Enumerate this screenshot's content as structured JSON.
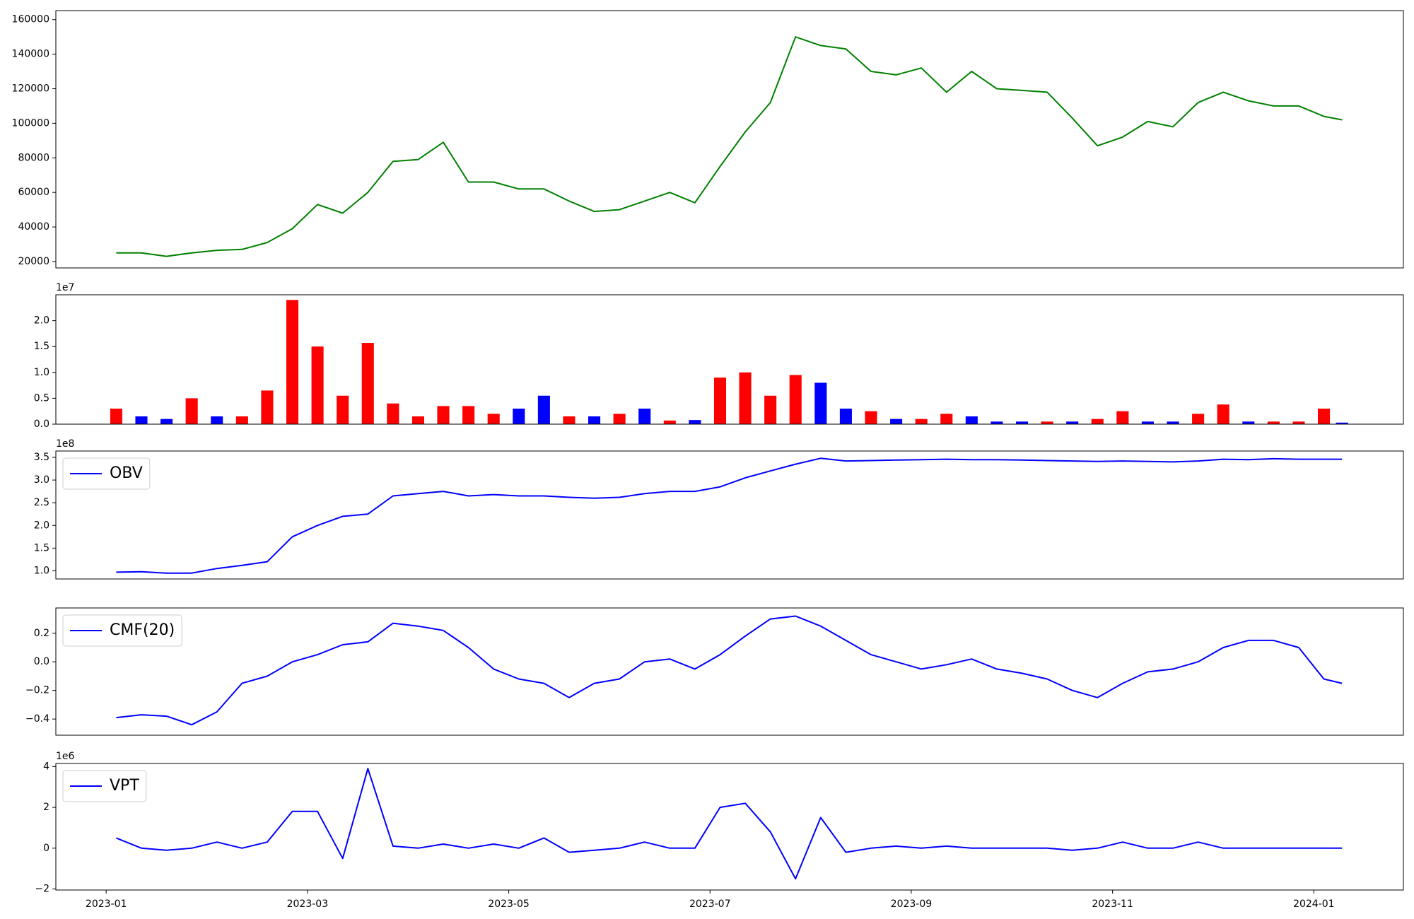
{
  "chart_data": [
    {
      "type": "line",
      "color": "#008000",
      "x": [
        0.1,
        0.35,
        0.6,
        0.85,
        1.1,
        1.35,
        1.6,
        1.85,
        2.1,
        2.35,
        2.6,
        2.85,
        3.1,
        3.35,
        3.6,
        3.85,
        4.1,
        4.35,
        4.6,
        4.85,
        5.1,
        5.35,
        5.6,
        5.85,
        6.1,
        6.35,
        6.6,
        6.85,
        7.1,
        7.35,
        7.6,
        7.85,
        8.1,
        8.35,
        8.6,
        8.85,
        9.1,
        9.35,
        9.6,
        9.85,
        10.1,
        10.35,
        10.6,
        10.85,
        11.1,
        11.35,
        11.6,
        11.85,
        12.1,
        12.28
      ],
      "values": [
        25000,
        25000,
        23000,
        25000,
        26500,
        27000,
        31000,
        39000,
        53000,
        48000,
        60000,
        78000,
        79000,
        89000,
        66000,
        66000,
        62000,
        62000,
        55000,
        49000,
        50000,
        55000,
        60000,
        54000,
        75000,
        95000,
        112000,
        150000,
        145000,
        143000,
        130000,
        128000,
        132000,
        118000,
        130000,
        120000,
        119000,
        118000,
        103000,
        87000,
        92000,
        101000,
        98000,
        112000,
        118000,
        113000,
        110000,
        110000,
        104000,
        102000
      ],
      "xlim": [
        -0.5,
        12.89
      ],
      "ylim": [
        16300,
        165200
      ],
      "yticks": [
        20000,
        40000,
        60000,
        80000,
        100000,
        120000,
        140000,
        160000
      ]
    },
    {
      "type": "bar",
      "y_offset_label": "1e7",
      "x": [
        0.1,
        0.35,
        0.6,
        0.85,
        1.1,
        1.35,
        1.6,
        1.85,
        2.1,
        2.35,
        2.6,
        2.85,
        3.1,
        3.35,
        3.6,
        3.85,
        4.1,
        4.35,
        4.6,
        4.85,
        5.1,
        5.35,
        5.6,
        5.85,
        6.1,
        6.35,
        6.6,
        6.85,
        7.1,
        7.35,
        7.6,
        7.85,
        8.1,
        8.35,
        8.6,
        8.85,
        9.1,
        9.35,
        9.6,
        9.85,
        10.1,
        10.35,
        10.6,
        10.85,
        11.1,
        11.35,
        11.6,
        11.85,
        12.1,
        12.28
      ],
      "values": [
        0.3,
        0.15,
        0.1,
        0.5,
        0.15,
        0.15,
        0.65,
        2.4,
        1.5,
        0.55,
        1.57,
        0.4,
        0.15,
        0.35,
        0.35,
        0.2,
        0.3,
        0.55,
        0.15,
        0.15,
        0.2,
        0.3,
        0.07,
        0.08,
        0.9,
        1.0,
        0.55,
        0.95,
        0.8,
        0.3,
        0.25,
        0.1,
        0.1,
        0.2,
        0.15,
        0.05,
        0.05,
        0.05,
        0.05,
        0.1,
        0.25,
        0.05,
        0.05,
        0.2,
        0.38,
        0.05,
        0.05,
        0.05,
        0.3,
        0.03
      ],
      "bar_colors": [
        "#ff0000",
        "#0000ff",
        "#0000ff",
        "#ff0000",
        "#0000ff",
        "#ff0000",
        "#ff0000",
        "#ff0000",
        "#ff0000",
        "#ff0000",
        "#ff0000",
        "#ff0000",
        "#ff0000",
        "#ff0000",
        "#ff0000",
        "#ff0000",
        "#0000ff",
        "#0000ff",
        "#ff0000",
        "#0000ff",
        "#ff0000",
        "#0000ff",
        "#ff0000",
        "#0000ff",
        "#ff0000",
        "#ff0000",
        "#ff0000",
        "#ff0000",
        "#0000ff",
        "#0000ff",
        "#ff0000",
        "#0000ff",
        "#ff0000",
        "#ff0000",
        "#0000ff",
        "#0000ff",
        "#0000ff",
        "#ff0000",
        "#0000ff",
        "#ff0000",
        "#ff0000",
        "#0000ff",
        "#0000ff",
        "#ff0000",
        "#ff0000",
        "#0000ff",
        "#ff0000",
        "#ff0000",
        "#ff0000",
        "#0000ff"
      ],
      "xlim": [
        -0.5,
        12.89
      ],
      "ylim": [
        0,
        2.5
      ],
      "yticks": [
        {
          "value": 0,
          "label": "0.0"
        },
        {
          "value": 0.5,
          "label": "0.5"
        },
        {
          "value": 1,
          "label": "1.0"
        },
        {
          "value": 1.5,
          "label": "1.5"
        },
        {
          "value": 2,
          "label": "2.0"
        }
      ]
    },
    {
      "type": "line",
      "y_offset_label": "1e8",
      "legend": "upper left",
      "x": [
        0.1,
        0.35,
        0.6,
        0.85,
        1.1,
        1.35,
        1.6,
        1.85,
        2.1,
        2.35,
        2.6,
        2.85,
        3.1,
        3.35,
        3.6,
        3.85,
        4.1,
        4.35,
        4.6,
        4.85,
        5.1,
        5.35,
        5.6,
        5.85,
        6.1,
        6.35,
        6.6,
        6.85,
        7.1,
        7.35,
        7.6,
        7.85,
        8.1,
        8.35,
        8.6,
        8.85,
        9.1,
        9.35,
        9.6,
        9.85,
        10.1,
        10.35,
        10.6,
        10.85,
        11.1,
        11.35,
        11.6,
        11.85,
        12.1,
        12.28
      ],
      "series": [
        {
          "name": "OBV",
          "color": "#0000ff",
          "values": [
            0.97,
            0.98,
            0.95,
            0.95,
            1.05,
            1.12,
            1.2,
            1.75,
            2.0,
            2.2,
            2.25,
            2.65,
            2.7,
            2.75,
            2.65,
            2.68,
            2.65,
            2.65,
            2.62,
            2.6,
            2.62,
            2.7,
            2.75,
            2.75,
            2.85,
            3.05,
            3.2,
            3.35,
            3.48,
            3.42,
            3.43,
            3.44,
            3.45,
            3.46,
            3.45,
            3.45,
            3.44,
            3.43,
            3.42,
            3.41,
            3.42,
            3.41,
            3.4,
            3.42,
            3.46,
            3.45,
            3.47,
            3.46,
            3.46,
            3.46
          ]
        }
      ],
      "xlim": [
        -0.5,
        12.89
      ],
      "ylim": [
        0.82,
        3.64
      ],
      "yticks": [
        {
          "value": 1,
          "label": "1.0"
        },
        {
          "value": 1.5,
          "label": "1.5"
        },
        {
          "value": 2,
          "label": "2.0"
        },
        {
          "value": 2.5,
          "label": "2.5"
        },
        {
          "value": 3,
          "label": "3.0"
        },
        {
          "value": 3.5,
          "label": "3.5"
        }
      ]
    },
    {
      "type": "line",
      "legend": "upper left",
      "x": [
        0.1,
        0.35,
        0.6,
        0.85,
        1.1,
        1.35,
        1.6,
        1.85,
        2.1,
        2.35,
        2.6,
        2.85,
        3.1,
        3.35,
        3.6,
        3.85,
        4.1,
        4.35,
        4.6,
        4.85,
        5.1,
        5.35,
        5.6,
        5.85,
        6.1,
        6.35,
        6.6,
        6.85,
        7.1,
        7.35,
        7.6,
        7.85,
        8.1,
        8.35,
        8.6,
        8.85,
        9.1,
        9.35,
        9.6,
        9.85,
        10.1,
        10.35,
        10.6,
        10.85,
        11.1,
        11.35,
        11.6,
        11.85,
        12.1,
        12.28
      ],
      "series": [
        {
          "name": "CMF(20)",
          "color": "#0000ff",
          "values": [
            -0.39,
            -0.37,
            -0.38,
            -0.44,
            -0.35,
            -0.15,
            -0.1,
            0.0,
            0.05,
            0.12,
            0.14,
            0.27,
            0.25,
            0.22,
            0.1,
            -0.05,
            -0.12,
            -0.15,
            -0.25,
            -0.15,
            -0.12,
            0.0,
            0.02,
            -0.05,
            0.05,
            0.18,
            0.3,
            0.32,
            0.25,
            0.15,
            0.05,
            0.0,
            -0.05,
            -0.02,
            0.02,
            -0.05,
            -0.08,
            -0.12,
            -0.2,
            -0.25,
            -0.15,
            -0.07,
            -0.05,
            0.0,
            0.1,
            0.15,
            0.15,
            0.1,
            -0.12,
            -0.15
          ]
        }
      ],
      "xlim": [
        -0.5,
        12.89
      ],
      "ylim": [
        -0.513,
        0.377
      ],
      "yticks": [
        {
          "value": -0.4,
          "label": "−0.4"
        },
        {
          "value": -0.2,
          "label": "−0.2"
        },
        {
          "value": 0,
          "label": "0.0"
        },
        {
          "value": 0.2,
          "label": "0.2"
        }
      ]
    },
    {
      "type": "line",
      "y_offset_label": "1e6",
      "legend": "upper left",
      "x": [
        0.1,
        0.35,
        0.6,
        0.85,
        1.1,
        1.35,
        1.6,
        1.85,
        2.1,
        2.35,
        2.6,
        2.85,
        3.1,
        3.35,
        3.6,
        3.85,
        4.1,
        4.35,
        4.6,
        4.85,
        5.1,
        5.35,
        5.6,
        5.85,
        6.1,
        6.35,
        6.6,
        6.85,
        7.1,
        7.35,
        7.6,
        7.85,
        8.1,
        8.35,
        8.6,
        8.85,
        9.1,
        9.35,
        9.6,
        9.85,
        10.1,
        10.35,
        10.6,
        10.85,
        11.1,
        11.35,
        11.6,
        11.85,
        12.1,
        12.28
      ],
      "series": [
        {
          "name": "VPT",
          "color": "#0000ff",
          "values": [
            0.5,
            0.0,
            -0.1,
            0.0,
            0.3,
            0.0,
            0.3,
            1.8,
            1.8,
            -0.5,
            3.9,
            0.1,
            0.0,
            0.2,
            0.0,
            0.2,
            0.0,
            0.5,
            -0.2,
            -0.1,
            0.0,
            0.3,
            0.0,
            0.0,
            2.0,
            2.2,
            0.8,
            -1.5,
            1.5,
            -0.2,
            0.0,
            0.1,
            0.0,
            0.1,
            0.0,
            0.0,
            0.0,
            0.0,
            -0.1,
            0.0,
            0.3,
            0.0,
            0.0,
            0.3,
            0.0,
            0.0,
            0.0,
            0.0,
            0.0,
            0.0
          ]
        }
      ],
      "xlim": [
        -0.5,
        12.89
      ],
      "ylim": [
        -2.05,
        4.15
      ],
      "yticks": [
        {
          "value": -2,
          "label": "−2"
        },
        0,
        2,
        4
      ],
      "xticks": [
        {
          "value": 0,
          "label": "2023-01"
        },
        {
          "value": 2,
          "label": "2023-03"
        },
        {
          "value": 4,
          "label": "2023-05"
        },
        {
          "value": 6,
          "label": "2023-07"
        },
        {
          "value": 8,
          "label": "2023-09"
        },
        {
          "value": 10,
          "label": "2023-11"
        },
        {
          "value": 12,
          "label": "2024-01"
        }
      ]
    }
  ]
}
